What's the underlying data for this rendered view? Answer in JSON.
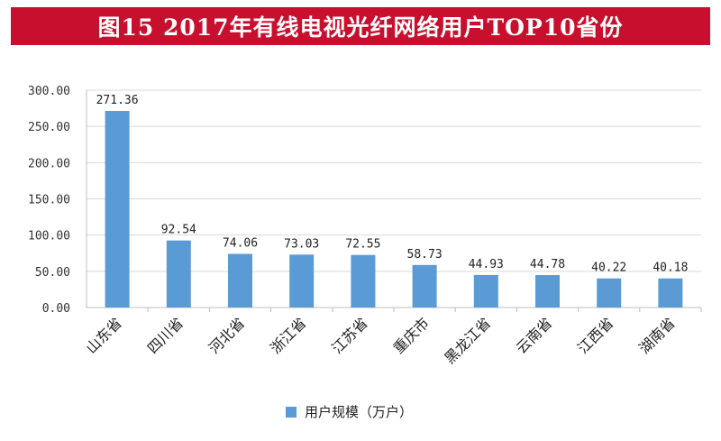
{
  "header": {
    "title": "图15  2017年有线电视光纤网络用户TOP10省份"
  },
  "colors": {
    "title_bg": "#c8102e",
    "bar": "#5b9bd5",
    "grid": "#d9d9d9",
    "axis": "#bfbfbf"
  },
  "chart_data": {
    "type": "bar",
    "title": "图15  2017年有线电视光纤网络用户TOP10省份",
    "xlabel": "",
    "ylabel": "",
    "ylim": [
      0,
      300
    ],
    "yticks": [
      0,
      50,
      100,
      150,
      200,
      250,
      300
    ],
    "ytick_labels": [
      "0.00",
      "50.00",
      "100.00",
      "150.00",
      "200.00",
      "250.00",
      "300.00"
    ],
    "grid": true,
    "legend_position": "bottom",
    "categories": [
      "山东省",
      "四川省",
      "河北省",
      "浙江省",
      "江苏省",
      "重庆市",
      "黑龙江省",
      "云南省",
      "江西省",
      "湖南省"
    ],
    "series": [
      {
        "name": "用户规模（万户）",
        "values": [
          271.36,
          92.54,
          74.06,
          73.03,
          72.55,
          58.73,
          44.93,
          44.78,
          40.22,
          40.18
        ],
        "labels": [
          "271.36",
          "92.54",
          "74.06",
          "73.03",
          "72.55",
          "58.73",
          "44.93",
          "44.78",
          "40.22",
          "40.18"
        ]
      }
    ]
  }
}
